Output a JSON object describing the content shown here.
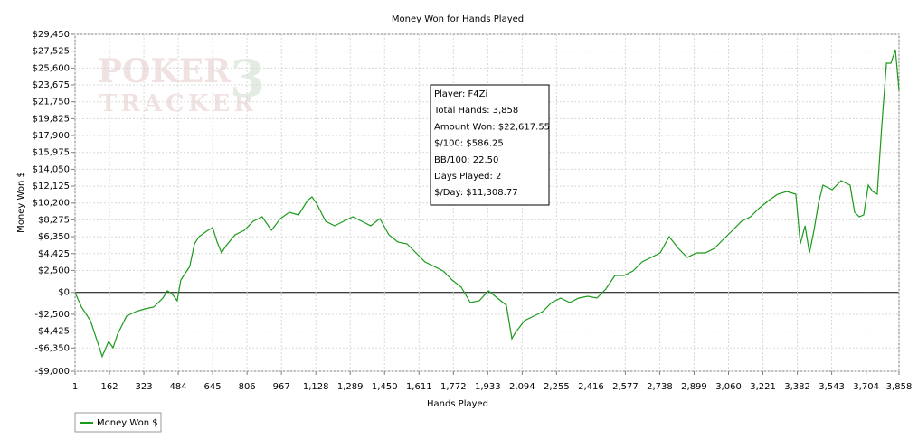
{
  "chart_data": {
    "type": "line",
    "title": "Money Won for Hands Played",
    "x_label": "Hands Played",
    "y_label": "Money Won $",
    "watermark": {
      "line1": "POKER",
      "line2": "TRACKER",
      "mark": "3"
    },
    "annotation": [
      "Player: F4Zi",
      "Total Hands: 3,858",
      "Amount Won: $22,617.55",
      "$/100: $586.25",
      "BB/100: 22.50",
      "Days Played: 2",
      "$/Day: $11,308.77"
    ],
    "grid": true,
    "legend": "bottom-left",
    "xlim": [
      1,
      3858
    ],
    "xticks": [
      1,
      162,
      323,
      484,
      645,
      806,
      967,
      {
        "value": 1128,
        "label": "1,128"
      },
      {
        "value": 1289,
        "label": "1,289"
      },
      {
        "value": 1450,
        "label": "1,450"
      },
      {
        "value": 1611,
        "label": "1,611"
      },
      {
        "value": 1772,
        "label": "1,772"
      },
      {
        "value": 1933,
        "label": "1,933"
      },
      {
        "value": 2094,
        "label": "2,094"
      },
      {
        "value": 2255,
        "label": "2,255"
      },
      {
        "value": 2416,
        "label": "2,416"
      },
      {
        "value": 2577,
        "label": "2,577"
      },
      {
        "value": 2738,
        "label": "2,738"
      },
      {
        "value": 2899,
        "label": "2,899"
      },
      {
        "value": 3060,
        "label": "3,060"
      },
      {
        "value": 3221,
        "label": "3,221"
      },
      {
        "value": 3382,
        "label": "3,382"
      },
      {
        "value": 3543,
        "label": "3,543"
      },
      {
        "value": 3704,
        "label": "3,704"
      },
      {
        "value": 3858,
        "label": "3,858"
      }
    ],
    "ylim": [
      -9000,
      29450
    ],
    "yticks": [
      {
        "value": 29450,
        "label": "$29,450"
      },
      {
        "value": 27525,
        "label": "$27,525"
      },
      {
        "value": 25600,
        "label": "$25,600"
      },
      {
        "value": 23675,
        "label": "$23,675"
      },
      {
        "value": 21750,
        "label": "$21,750"
      },
      {
        "value": 19825,
        "label": "$19,825"
      },
      {
        "value": 17900,
        "label": "$17,900"
      },
      {
        "value": 15975,
        "label": "$15,975"
      },
      {
        "value": 14050,
        "label": "$14,050"
      },
      {
        "value": 12125,
        "label": "$12,125"
      },
      {
        "value": 10200,
        "label": "$10,200"
      },
      {
        "value": 8275,
        "label": "$8,275"
      },
      {
        "value": 6350,
        "label": "$6,350"
      },
      {
        "value": 4425,
        "label": "$4,425"
      },
      {
        "value": 2500,
        "label": "$2,500"
      },
      {
        "value": 0,
        "label": "$0"
      },
      {
        "value": -2500,
        "label": "-$2,500"
      },
      {
        "value": -4425,
        "label": "-$4,425"
      },
      {
        "value": -6350,
        "label": "-$6,350"
      },
      {
        "value": -9000,
        "label": "-$9,000"
      }
    ],
    "x": [
      1,
      31,
      73,
      115,
      128,
      158,
      179,
      200,
      221,
      242,
      285,
      327,
      369,
      412,
      433,
      454,
      479,
      496,
      538,
      560,
      581,
      623,
      645,
      666,
      687,
      708,
      750,
      793,
      835,
      877,
      920,
      962,
      1004,
      1047,
      1089,
      1110,
      1131,
      1174,
      1216,
      1258,
      1301,
      1343,
      1385,
      1428,
      1470,
      1512,
      1555,
      1597,
      1639,
      1682,
      1724,
      1766,
      1809,
      1851,
      1893,
      1936,
      1978,
      2020,
      2046,
      2063,
      2105,
      2148,
      2190,
      2232,
      2274,
      2317,
      2359,
      2401,
      2444,
      2486,
      2528,
      2571,
      2613,
      2655,
      2698,
      2740,
      2782,
      2825,
      2867,
      2909,
      2952,
      2994,
      3036,
      3079,
      3121,
      3163,
      3206,
      3248,
      3290,
      3333,
      3375,
      3396,
      3418,
      3439,
      3460,
      3481,
      3502,
      3545,
      3587,
      3629,
      3650,
      3672,
      3693,
      3714,
      3735,
      3756,
      3777,
      3799,
      3820,
      3841,
      3858
    ],
    "series": [
      {
        "name": "Money Won $",
        "color": "#1a9a1a",
        "values": [
          0,
          -1681,
          -3228,
          -6320,
          -7320,
          -5600,
          -6320,
          -4774,
          -3743,
          -2712,
          -2197,
          -1887,
          -1681,
          -650,
          175,
          -135,
          -960,
          1411,
          2957,
          5534,
          6359,
          7080,
          7390,
          5740,
          4503,
          5328,
          6565,
          7080,
          8111,
          8627,
          7080,
          8420,
          9142,
          8833,
          10482,
          10894,
          10173,
          8111,
          7596,
          8111,
          8627,
          8111,
          7596,
          8420,
          6565,
          5740,
          5534,
          4503,
          3472,
          2957,
          2442,
          1411,
          586,
          -1166,
          -960,
          175,
          -650,
          -1475,
          -5289,
          -4568,
          -3228,
          -2712,
          -2197,
          -1166,
          -650,
          -1166,
          -650,
          -444,
          -650,
          380,
          1926,
          1926,
          2442,
          3472,
          3988,
          4503,
          6359,
          5018,
          3988,
          4503,
          4503,
          5018,
          6050,
          7080,
          8111,
          8627,
          9658,
          10482,
          11204,
          11513,
          11204,
          5534,
          7596,
          4503,
          7080,
          10173,
          12235,
          11720,
          12750,
          12235,
          9142,
          8627,
          8833,
          12235,
          11513,
          11204,
          18930,
          26150,
          26150,
          27700,
          23060
        ]
      }
    ]
  }
}
